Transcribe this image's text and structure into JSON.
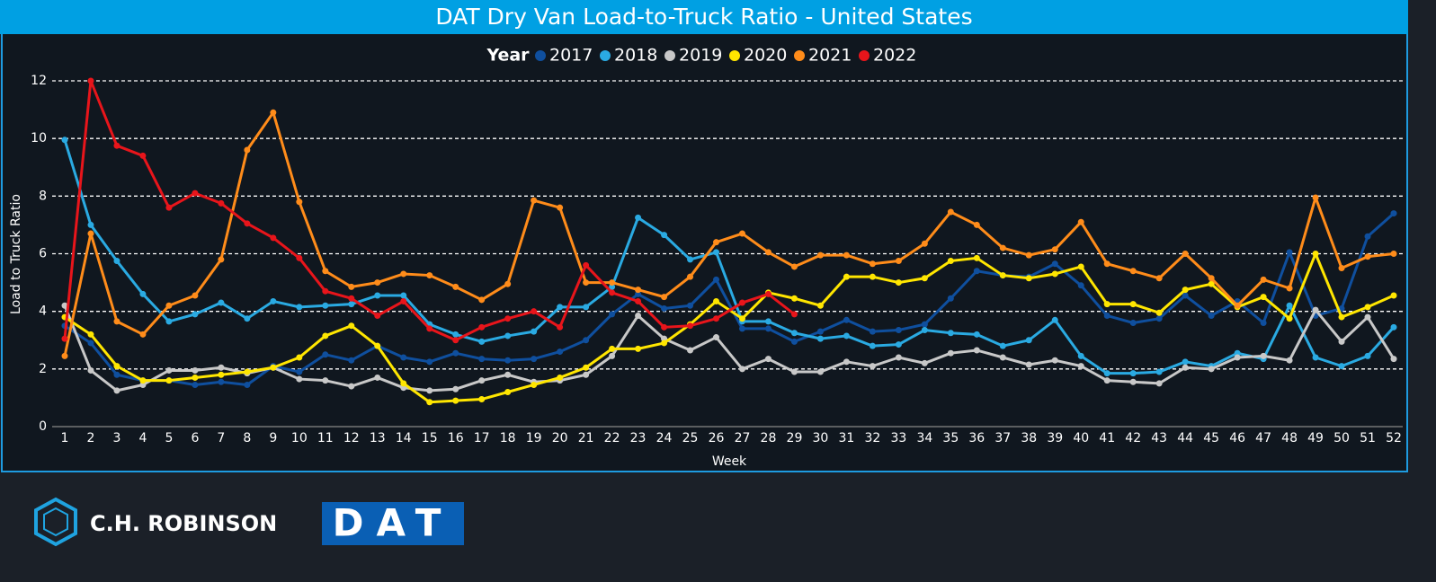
{
  "chart_data": {
    "type": "line",
    "title": "DAT Dry Van Load-to-Truck Ratio - United States",
    "x_label": "Week",
    "y_label": "Load to Truck Ratio",
    "legend_title": "Year",
    "legend": "top",
    "grid": true,
    "x": [
      1,
      2,
      3,
      4,
      5,
      6,
      7,
      8,
      9,
      10,
      11,
      12,
      13,
      14,
      15,
      16,
      17,
      18,
      19,
      20,
      21,
      22,
      23,
      24,
      25,
      26,
      27,
      28,
      29,
      30,
      31,
      32,
      33,
      34,
      35,
      36,
      37,
      38,
      39,
      40,
      41,
      42,
      43,
      44,
      45,
      46,
      47,
      48,
      49,
      50,
      51,
      52
    ],
    "xlim": [
      1,
      52
    ],
    "xticks": [
      1,
      2,
      3,
      4,
      5,
      6,
      7,
      8,
      9,
      10,
      11,
      12,
      13,
      14,
      15,
      16,
      17,
      18,
      19,
      20,
      21,
      22,
      23,
      24,
      25,
      26,
      27,
      28,
      29,
      30,
      31,
      32,
      33,
      34,
      35,
      36,
      37,
      38,
      39,
      40,
      41,
      42,
      43,
      44,
      45,
      46,
      47,
      48,
      49,
      50,
      51,
      52
    ],
    "ylim": [
      0,
      12
    ],
    "yticks": [
      0,
      2,
      4,
      6,
      8,
      10,
      12
    ],
    "series": [
      {
        "name": "2017",
        "color": "#0f4f9e",
        "values": [
          3.5,
          2.9,
          1.8,
          1.6,
          1.6,
          1.45,
          1.55,
          1.45,
          2.1,
          1.9,
          2.5,
          2.3,
          2.8,
          2.4,
          2.25,
          2.55,
          2.35,
          2.3,
          2.35,
          2.6,
          3.0,
          3.9,
          4.6,
          4.1,
          4.2,
          5.1,
          3.4,
          3.4,
          2.95,
          3.3,
          3.7,
          3.3,
          3.35,
          3.55,
          4.45,
          5.4,
          5.25,
          5.2,
          5.65,
          4.9,
          3.85,
          3.6,
          3.75,
          4.55,
          3.85,
          4.35,
          3.6,
          6.05,
          3.85,
          4.1,
          6.6,
          7.4
        ]
      },
      {
        "name": "2018",
        "color": "#2aaae2",
        "values": [
          9.95,
          7.0,
          5.75,
          4.6,
          3.65,
          3.9,
          4.3,
          3.75,
          4.35,
          4.15,
          4.2,
          4.25,
          4.55,
          4.55,
          3.55,
          3.2,
          2.95,
          3.15,
          3.3,
          4.15,
          4.15,
          4.85,
          7.25,
          6.65,
          5.8,
          6.05,
          3.65,
          3.65,
          3.25,
          3.05,
          3.15,
          2.8,
          2.85,
          3.35,
          3.25,
          3.2,
          2.8,
          3.0,
          3.7,
          2.45,
          1.85,
          1.85,
          1.9,
          2.25,
          2.1,
          2.55,
          2.35,
          4.2,
          2.4,
          2.1,
          2.45,
          3.45
        ]
      },
      {
        "name": "2019",
        "color": "#c8c8c8",
        "values": [
          4.2,
          1.95,
          1.25,
          1.45,
          1.95,
          1.95,
          2.05,
          1.85,
          2.05,
          1.65,
          1.6,
          1.4,
          1.7,
          1.35,
          1.25,
          1.3,
          1.6,
          1.8,
          1.55,
          1.6,
          1.8,
          2.45,
          3.85,
          3.05,
          2.65,
          3.1,
          2.0,
          2.35,
          1.9,
          1.9,
          2.25,
          2.1,
          2.4,
          2.2,
          2.55,
          2.65,
          2.4,
          2.15,
          2.3,
          2.1,
          1.6,
          1.55,
          1.5,
          2.05,
          2.0,
          2.4,
          2.45,
          2.3,
          4.05,
          2.95,
          3.8,
          2.35
        ]
      },
      {
        "name": "2020",
        "color": "#ffe600",
        "values": [
          3.8,
          3.2,
          2.1,
          1.6,
          1.6,
          1.7,
          1.8,
          1.9,
          2.05,
          2.4,
          3.15,
          3.5,
          2.8,
          1.5,
          0.85,
          0.9,
          0.95,
          1.2,
          1.45,
          1.7,
          2.05,
          2.7,
          2.7,
          2.9,
          3.55,
          4.35,
          3.75,
          4.65,
          4.45,
          4.2,
          5.2,
          5.2,
          5.0,
          5.15,
          5.75,
          5.85,
          5.25,
          5.15,
          5.3,
          5.55,
          4.25,
          4.25,
          3.95,
          4.75,
          4.95,
          4.15,
          4.5,
          3.75,
          6.0,
          3.8,
          4.15,
          4.55
        ]
      },
      {
        "name": "2021",
        "color": "#ff8c1a",
        "values": [
          2.45,
          6.7,
          3.65,
          3.2,
          4.2,
          4.55,
          5.8,
          9.6,
          10.9,
          7.8,
          5.4,
          4.85,
          5.0,
          5.3,
          5.25,
          4.85,
          4.4,
          4.95,
          7.85,
          7.6,
          5.0,
          5.0,
          4.75,
          4.5,
          5.2,
          6.4,
          6.7,
          6.05,
          5.55,
          5.95,
          5.95,
          5.65,
          5.75,
          6.35,
          7.45,
          7.0,
          6.2,
          5.95,
          6.15,
          7.1,
          5.65,
          5.4,
          5.15,
          6.0,
          5.15,
          4.2,
          5.1,
          4.8,
          7.95,
          5.5,
          5.9,
          6.0
        ]
      },
      {
        "name": "2022",
        "color": "#e8151b",
        "values": [
          3.05,
          12.0,
          9.75,
          9.4,
          7.6,
          8.1,
          7.75,
          7.05,
          6.55,
          5.85,
          4.7,
          4.45,
          3.85,
          4.35,
          3.4,
          3.0,
          3.45,
          3.75,
          4.0,
          3.45,
          5.6,
          4.65,
          4.35,
          3.45,
          3.5,
          3.75,
          4.3,
          4.6,
          3.9,
          null,
          null,
          null,
          null,
          null,
          null,
          null,
          null,
          null,
          null,
          null,
          null,
          null,
          null,
          null,
          null,
          null,
          null,
          null,
          null,
          null,
          null,
          null
        ]
      }
    ]
  },
  "footer": {
    "brand1": "C.H. ROBINSON",
    "brand2": "DAT"
  }
}
